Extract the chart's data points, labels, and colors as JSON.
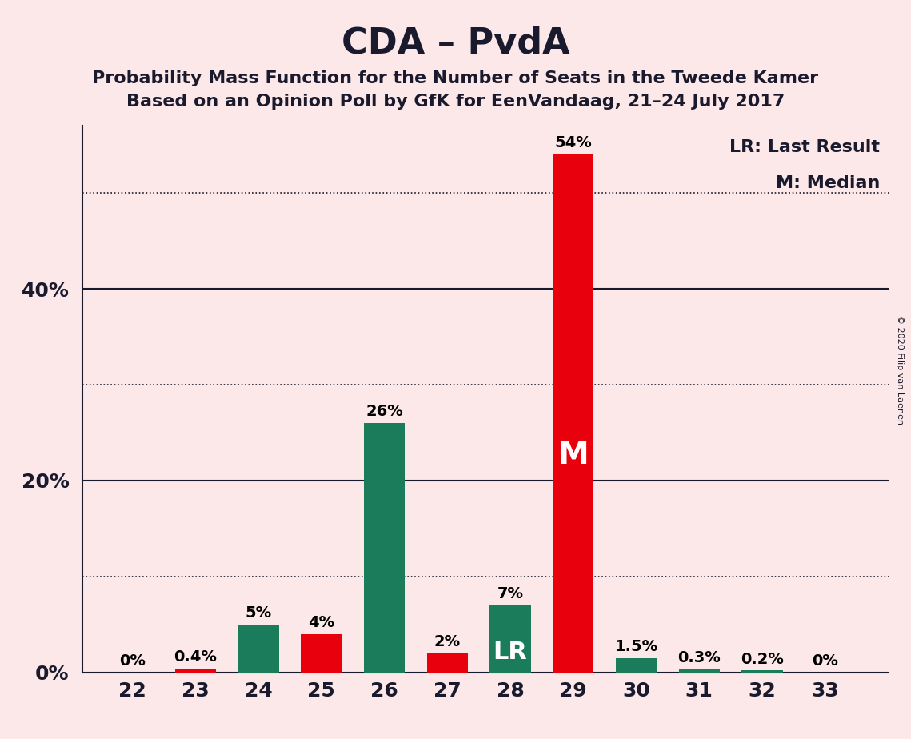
{
  "title": "CDA – PvdA",
  "subtitle1": "Probability Mass Function for the Number of Seats in the Tweede Kamer",
  "subtitle2": "Based on an Opinion Poll by GfK for EenVandaag, 21–24 July 2017",
  "copyright": "© 2020 Filip van Laenen",
  "seats": [
    22,
    23,
    24,
    25,
    26,
    27,
    28,
    29,
    30,
    31,
    32,
    33
  ],
  "values": [
    0.0,
    0.4,
    5.0,
    4.0,
    26.0,
    2.0,
    7.0,
    54.0,
    1.5,
    0.3,
    0.2,
    0.0
  ],
  "bar_colors": [
    "#e8000d",
    "#e8000d",
    "#1a7c5a",
    "#e8000d",
    "#1a7c5a",
    "#e8000d",
    "#1a7c5a",
    "#e8000d",
    "#1a7c5a",
    "#1a7c5a",
    "#1a7c5a",
    "#1a7c5a"
  ],
  "labels": [
    "0%",
    "0.4%",
    "5%",
    "4%",
    "26%",
    "2%",
    "7%",
    "54%",
    "1.5%",
    "0.3%",
    "0.2%",
    "0%"
  ],
  "bar_annotations": {
    "28": "LR",
    "29": "M"
  },
  "background_color": "#fce8e8",
  "legend_lr": "LR: Last Result",
  "legend_m": "M: Median",
  "ylim": [
    0,
    57
  ],
  "solid_yticks": [
    20,
    40
  ],
  "dotted_yticks": [
    10,
    30,
    50
  ],
  "ytick_labels_positions": [
    0,
    20,
    40
  ],
  "ytick_labels_values": [
    "0%",
    "20%",
    "40%"
  ],
  "title_fontsize": 32,
  "subtitle_fontsize": 16,
  "label_fontsize": 14,
  "tick_fontsize": 18,
  "annotation_fontsize": 22,
  "legend_fontsize": 16
}
